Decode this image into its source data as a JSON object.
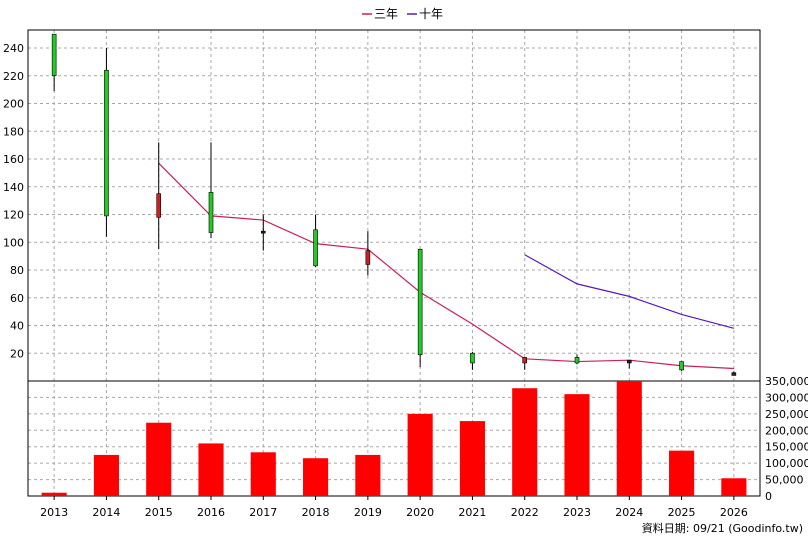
{
  "chart_data": {
    "type": "candlestick+line+bar",
    "categories": [
      "2013",
      "2014",
      "2015",
      "2016",
      "2017",
      "2018",
      "2019",
      "2020",
      "2021",
      "2022",
      "2023",
      "2024",
      "2025",
      "2026"
    ],
    "legend": {
      "placement": "top-center",
      "items": [
        {
          "name": "三年",
          "color": "#c8205a"
        },
        {
          "name": "十年",
          "color": "#5a1ab8"
        }
      ]
    },
    "price_axis": {
      "ticks": [
        20,
        40,
        60,
        80,
        100,
        120,
        140,
        160,
        180,
        200,
        220,
        240
      ],
      "range": [
        0,
        253
      ],
      "grid": true
    },
    "volume_axis": {
      "ticks": [
        "0",
        "50,000",
        "100,000",
        "150,000",
        "200,000",
        "250,000",
        "300,000",
        "350,000"
      ],
      "range": [
        0,
        350000
      ],
      "grid": true
    },
    "candles": [
      {
        "x": "2013",
        "open": 220,
        "close": 250,
        "high": 250,
        "low": 209,
        "color": "#22cc22"
      },
      {
        "x": "2014",
        "open": 224,
        "close": 119,
        "high": 240,
        "low": 104,
        "color": "#22cc22"
      },
      {
        "x": "2015",
        "open": 118,
        "close": 135,
        "high": 172,
        "low": 95,
        "color": "#cc2020"
      },
      {
        "x": "2016",
        "open": 136,
        "close": 107,
        "high": 172,
        "low": 103,
        "color": "#22cc22"
      },
      {
        "x": "2017",
        "open": 107,
        "close": 108,
        "high": 120,
        "low": 94,
        "color": "#222222"
      },
      {
        "x": "2018",
        "open": 109,
        "close": 83,
        "high": 120,
        "low": 82,
        "color": "#22cc22"
      },
      {
        "x": "2019",
        "open": 84,
        "close": 94,
        "high": 108,
        "low": 76,
        "color": "#cc2020"
      },
      {
        "x": "2020",
        "open": 95,
        "close": 19,
        "high": 95,
        "low": 10,
        "color": "#22cc22"
      },
      {
        "x": "2021",
        "open": 20,
        "close": 13,
        "high": 21,
        "low": 8,
        "color": "#22cc22"
      },
      {
        "x": "2022",
        "open": 13,
        "close": 17,
        "high": 17,
        "low": 8,
        "color": "#cc2020"
      },
      {
        "x": "2023",
        "open": 17,
        "close": 13,
        "high": 19,
        "low": 12,
        "color": "#22cc22"
      },
      {
        "x": "2024",
        "open": 15,
        "close": 13,
        "high": 15,
        "low": 9,
        "color": "#222222"
      },
      {
        "x": "2025",
        "open": 14,
        "close": 8,
        "high": 14,
        "low": 7,
        "color": "#22cc22"
      },
      {
        "x": "2026",
        "open": 6,
        "close": 4,
        "high": 7,
        "low": 4,
        "color": "#222222"
      }
    ],
    "series": [
      {
        "name": "三年",
        "color": "#c8205a",
        "x": [
          "2015",
          "2016",
          "2017",
          "2018",
          "2019",
          "2020",
          "2021",
          "2022",
          "2023",
          "2024",
          "2025",
          "2026"
        ],
        "values": [
          157,
          119,
          116,
          99,
          95,
          64,
          41,
          16,
          14,
          15,
          11,
          9
        ]
      },
      {
        "name": "十年",
        "color": "#5a1ab8",
        "x": [
          "2022",
          "2023",
          "2024",
          "2025",
          "2026"
        ],
        "values": [
          91,
          70,
          61,
          48,
          38
        ]
      }
    ],
    "volume": {
      "color": "#ff0000",
      "values": [
        10000,
        125000,
        223000,
        160000,
        133000,
        115000,
        125000,
        250000,
        228000,
        328000,
        310000,
        350000,
        138000,
        54000
      ]
    },
    "footer": "資料日期: 09/21  (Goodinfo.tw)"
  }
}
